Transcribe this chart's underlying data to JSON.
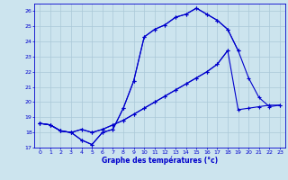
{
  "title": "Graphe des températures (°c)",
  "bg_color": "#cce4ee",
  "grid_color": "#aac8d8",
  "line_color": "#0000cc",
  "xlim": [
    -0.5,
    23.5
  ],
  "ylim": [
    17,
    26.5
  ],
  "xticks": [
    0,
    1,
    2,
    3,
    4,
    5,
    6,
    7,
    8,
    9,
    10,
    11,
    12,
    13,
    14,
    15,
    16,
    17,
    18,
    19,
    20,
    21,
    22,
    23
  ],
  "yticks": [
    17,
    18,
    19,
    20,
    21,
    22,
    23,
    24,
    25,
    26
  ],
  "series": [
    [
      18.6,
      18.5,
      18.1,
      18.0,
      17.5,
      17.2,
      18.0,
      18.2,
      19.6,
      21.4,
      24.3,
      24.8,
      25.1,
      25.6,
      25.8,
      26.2,
      25.8,
      25.4,
      24.8,
      23.4,
      null,
      null,
      null,
      null
    ],
    [
      18.6,
      18.5,
      18.1,
      18.0,
      17.5,
      17.2,
      18.0,
      18.2,
      19.6,
      21.4,
      24.3,
      24.8,
      25.1,
      25.6,
      25.8,
      26.2,
      25.8,
      25.4,
      24.8,
      23.4,
      21.6,
      20.3,
      19.7,
      19.8
    ],
    [
      18.6,
      18.5,
      18.1,
      18.0,
      18.2,
      18.0,
      18.2,
      18.5,
      18.8,
      19.2,
      19.6,
      20.0,
      20.4,
      20.8,
      21.2,
      21.6,
      22.0,
      22.5,
      23.4,
      null,
      null,
      null,
      null,
      null
    ],
    [
      18.6,
      18.5,
      18.1,
      18.0,
      18.2,
      18.0,
      18.2,
      18.5,
      18.8,
      19.2,
      19.6,
      20.0,
      20.4,
      20.8,
      21.2,
      21.6,
      22.0,
      22.5,
      23.4,
      19.5,
      19.6,
      19.7,
      19.8,
      19.8
    ]
  ]
}
